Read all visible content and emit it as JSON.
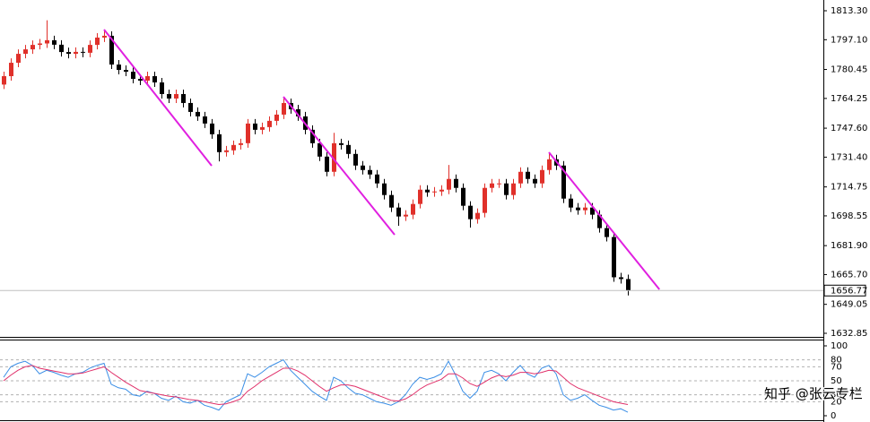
{
  "chart_data": {
    "type": "candlestick",
    "open": [
      1772.0,
      1776.7,
      1784.2,
      1789.2,
      1791.7,
      1794.2,
      1795.0,
      1796.8,
      1794.3,
      1790.2,
      1789.2,
      1790.3,
      1789.8,
      1794.2,
      1798.3,
      1799.3,
      1783.2,
      1780.2,
      1779.2,
      1775.2,
      1774.2,
      1776.7,
      1773.2,
      1766.7,
      1764.2,
      1766.7,
      1761.7,
      1756.7,
      1754.2,
      1750.2,
      1744.2,
      1734.2,
      1735.2,
      1738.2,
      1739.2,
      1750.2,
      1746.7,
      1748.2,
      1751.7,
      1755.2,
      1761.7,
      1758.2,
      1754.2,
      1746.7,
      1739.2,
      1731.7,
      1723.2,
      1739.2,
      1738.2,
      1733.2,
      1726.7,
      1724.2,
      1721.7,
      1716.7,
      1710.2,
      1703.2,
      1698.2,
      1699.2,
      1705.2,
      1713.2,
      1711.7,
      1712.2,
      1713.2,
      1719.2,
      1714.2,
      1704.2,
      1696.7,
      1700.2,
      1714.2,
      1716.7,
      1716.7,
      1710.2,
      1716.7,
      1723.2,
      1719.2,
      1716.7,
      1724.2,
      1730.2,
      1726.7,
      1708.2,
      1703.2,
      1701.7,
      1703.2,
      1699.2,
      1691.7,
      1686.7,
      1664.2,
      1663.2
    ],
    "high": [
      1779.2,
      1786.7,
      1791.7,
      1794.2,
      1796.7,
      1797.5,
      1808.0,
      1799.3,
      1796.8,
      1792.7,
      1792.8,
      1792.8,
      1796.7,
      1800.8,
      1802.0,
      1801.8,
      1785.7,
      1782.7,
      1781.7,
      1777.7,
      1779.2,
      1779.2,
      1775.7,
      1769.2,
      1769.2,
      1769.2,
      1764.2,
      1759.2,
      1756.7,
      1752.7,
      1746.7,
      1737.7,
      1740.7,
      1741.7,
      1752.7,
      1752.7,
      1750.7,
      1754.2,
      1757.7,
      1765.0,
      1764.2,
      1760.7,
      1756.7,
      1749.2,
      1741.7,
      1734.2,
      1745.0,
      1741.7,
      1740.7,
      1735.7,
      1729.2,
      1726.7,
      1724.2,
      1719.2,
      1712.7,
      1705.7,
      1701.7,
      1707.7,
      1715.7,
      1715.7,
      1714.7,
      1715.7,
      1727.0,
      1721.7,
      1716.7,
      1706.7,
      1702.7,
      1716.7,
      1719.2,
      1719.2,
      1719.2,
      1719.2,
      1725.7,
      1725.7,
      1721.7,
      1726.7,
      1733.5,
      1732.7,
      1729.2,
      1710.7,
      1705.7,
      1705.7,
      1705.7,
      1701.7,
      1694.2,
      1689.2,
      1666.7,
      1665.7
    ],
    "low": [
      1769.5,
      1774.2,
      1781.7,
      1786.7,
      1789.2,
      1791.7,
      1792.5,
      1791.8,
      1787.7,
      1786.7,
      1786.7,
      1787.3,
      1787.3,
      1791.7,
      1795.8,
      1780.7,
      1777.7,
      1776.7,
      1772.7,
      1771.7,
      1771.7,
      1770.7,
      1764.2,
      1761.7,
      1761.7,
      1759.2,
      1754.2,
      1751.7,
      1747.7,
      1741.7,
      1729.0,
      1731.7,
      1732.7,
      1735.7,
      1736.7,
      1744.2,
      1744.2,
      1745.7,
      1749.2,
      1752.7,
      1755.7,
      1751.7,
      1744.2,
      1736.7,
      1729.2,
      1720.7,
      1720.7,
      1735.7,
      1730.7,
      1724.2,
      1721.7,
      1719.2,
      1714.2,
      1707.7,
      1700.7,
      1693.0,
      1695.7,
      1696.7,
      1702.7,
      1709.2,
      1709.2,
      1709.7,
      1710.7,
      1711.7,
      1701.7,
      1692.0,
      1694.2,
      1697.7,
      1711.7,
      1714.2,
      1707.7,
      1707.7,
      1714.2,
      1716.7,
      1714.2,
      1714.2,
      1721.7,
      1724.2,
      1705.7,
      1700.7,
      1699.2,
      1699.2,
      1696.7,
      1689.2,
      1684.2,
      1661.7,
      1660.7,
      1654.0
    ],
    "close": [
      1776.7,
      1784.2,
      1789.2,
      1791.7,
      1794.2,
      1795.0,
      1796.8,
      1794.3,
      1790.2,
      1789.2,
      1790.3,
      1789.8,
      1794.2,
      1798.3,
      1799.3,
      1783.2,
      1780.2,
      1779.2,
      1775.2,
      1774.2,
      1776.7,
      1773.2,
      1766.7,
      1764.2,
      1766.7,
      1761.7,
      1756.7,
      1754.2,
      1750.2,
      1744.2,
      1734.2,
      1735.2,
      1738.2,
      1739.2,
      1750.2,
      1746.7,
      1748.2,
      1751.7,
      1755.2,
      1761.7,
      1758.2,
      1754.2,
      1746.7,
      1739.2,
      1731.7,
      1723.2,
      1739.2,
      1738.2,
      1733.2,
      1726.7,
      1724.2,
      1721.7,
      1716.7,
      1710.2,
      1703.2,
      1698.2,
      1699.2,
      1705.2,
      1713.2,
      1711.7,
      1712.2,
      1713.2,
      1719.2,
      1714.2,
      1704.2,
      1696.7,
      1700.2,
      1714.2,
      1716.7,
      1716.7,
      1710.2,
      1716.7,
      1723.2,
      1719.2,
      1716.7,
      1724.2,
      1730.2,
      1726.7,
      1708.2,
      1703.2,
      1701.7,
      1703.2,
      1699.2,
      1691.7,
      1686.7,
      1664.2,
      1663.2,
      1656.77
    ],
    "up_color": "#e0302a",
    "down_color": "#000000",
    "ylim": [
      1632.85,
      1813.3
    ],
    "yticks": [
      {
        "value": 1813.3,
        "label": "1813.30"
      },
      {
        "value": 1797.1,
        "label": "1797.10"
      },
      1780.45,
      1764.25,
      {
        "value": 1747.6,
        "label": "1747.60"
      },
      {
        "value": 1731.4,
        "label": "1731.40"
      },
      1714.75,
      1698.55,
      {
        "value": 1681.9,
        "label": "1681.90"
      },
      {
        "value": 1665.7,
        "label": "1665.70"
      },
      1649.05,
      1632.85
    ],
    "current_price": 1656.77,
    "trendlines": [
      {
        "start": [
          14,
          1802.8
        ],
        "end": [
          29,
          1726.6
        ]
      },
      {
        "start": [
          39,
          1765.2
        ],
        "end": [
          54.5,
          1688.0
        ]
      },
      {
        "start": [
          76,
          1734.1
        ],
        "end": [
          91.4,
          1657.4
        ]
      }
    ],
    "trendline_color": "#e020e0",
    "indicator": {
      "ylim": [
        0,
        100
      ],
      "yticks": [
        100,
        80,
        70,
        50,
        30,
        20,
        0
      ],
      "series": [
        {
          "color": "#3a8ee6",
          "values": [
            55,
            70,
            75,
            78,
            72,
            60,
            65,
            62,
            58,
            55,
            60,
            62,
            68,
            72,
            75,
            45,
            40,
            38,
            30,
            28,
            35,
            32,
            25,
            22,
            28,
            20,
            18,
            22,
            15,
            12,
            8,
            20,
            25,
            30,
            60,
            55,
            62,
            70,
            75,
            80,
            65,
            55,
            45,
            35,
            28,
            22,
            55,
            50,
            40,
            32,
            30,
            25,
            20,
            18,
            15,
            20,
            30,
            45,
            55,
            52,
            55,
            60,
            78,
            58,
            35,
            25,
            35,
            62,
            65,
            60,
            50,
            62,
            72,
            60,
            55,
            68,
            72,
            60,
            30,
            22,
            25,
            30,
            22,
            15,
            12,
            8,
            10,
            5
          ]
        },
        {
          "color": "#e0306a",
          "values": [
            50,
            58,
            65,
            70,
            72,
            68,
            66,
            64,
            62,
            60,
            60,
            61,
            64,
            67,
            70,
            62,
            55,
            48,
            42,
            36,
            34,
            32,
            30,
            28,
            27,
            25,
            23,
            22,
            20,
            18,
            16,
            17,
            20,
            24,
            35,
            42,
            50,
            56,
            62,
            68,
            68,
            64,
            58,
            50,
            42,
            35,
            40,
            44,
            44,
            42,
            38,
            34,
            30,
            26,
            22,
            21,
            24,
            30,
            38,
            44,
            48,
            52,
            60,
            60,
            54,
            46,
            42,
            48,
            54,
            58,
            56,
            58,
            62,
            62,
            60,
            62,
            65,
            64,
            55,
            46,
            40,
            36,
            32,
            28,
            24,
            20,
            18,
            16
          ]
        }
      ]
    },
    "watermark": "知乎 @张云专栏"
  }
}
